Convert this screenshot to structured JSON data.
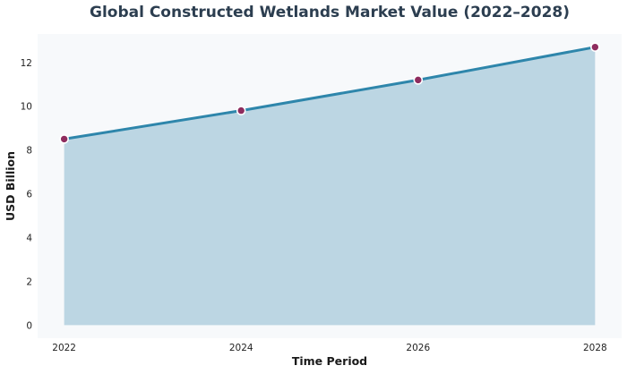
{
  "chart_data": {
    "type": "area",
    "title": "Global Constructed Wetlands Market Value (2022–2028)",
    "xlabel": "Time Period",
    "ylabel": "USD Billion",
    "x": [
      2022,
      2024,
      2026,
      2028
    ],
    "xticks": [
      "2022",
      "2024",
      "2026",
      "2028"
    ],
    "yticks": [
      "0",
      "2",
      "4",
      "6",
      "8",
      "10",
      "12"
    ],
    "ylim": [
      -0.6,
      13.3
    ],
    "xlim": [
      2021.7,
      2028.3
    ],
    "grid": false,
    "series": [
      {
        "values": [
          8.5,
          9.8,
          11.2,
          12.7
        ]
      }
    ],
    "colors": {
      "line": "#2e86ab",
      "fill": "#bcd6e3",
      "marker": "#8e2c5e",
      "marker_edge": "#ffffff",
      "plot_background": "#f7f9fb"
    }
  }
}
